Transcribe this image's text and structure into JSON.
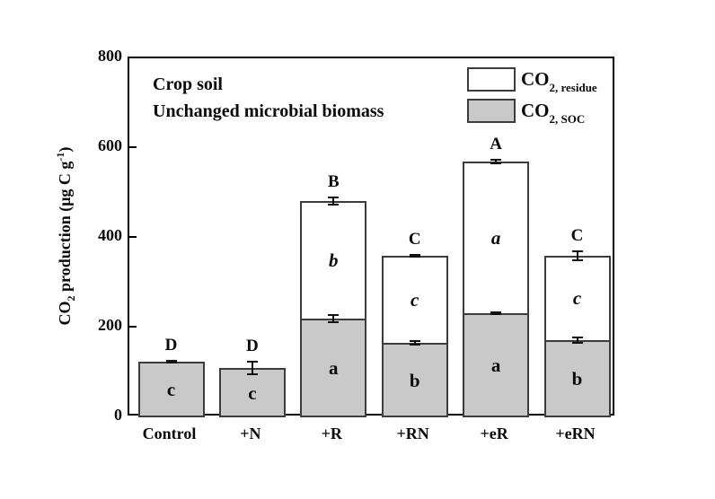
{
  "title": {
    "line1": "Crop soil",
    "line2": "Unchanged microbial biomass"
  },
  "y_axis": {
    "label": {
      "pre": "CO",
      "sub": "2",
      "mid": " production (μg C g",
      "sup": "-1",
      "post": ")"
    },
    "ticks": [
      "0",
      "200",
      "400",
      "600",
      "800"
    ]
  },
  "x_axis": {
    "categories": [
      "Control",
      "+N",
      "+R",
      "+RN",
      "+eR",
      "+eRN"
    ]
  },
  "legend": {
    "items": [
      {
        "id": "residue",
        "main": "CO",
        "sub": "2, residue",
        "fill": "#ffffff"
      },
      {
        "id": "soc",
        "main": "CO",
        "sub": "2, SOC",
        "fill": "#c9c9c9"
      }
    ]
  },
  "chart_data": {
    "type": "bar",
    "variant": "stacked",
    "title": "Crop soil",
    "subtitle": "Unchanged microbial biomass",
    "xlabel": "",
    "ylabel": "CO2 production (μg C g-1)",
    "ylim": [
      0,
      800
    ],
    "yticks": [
      0,
      200,
      400,
      600,
      800
    ],
    "grid": false,
    "legend_position": "top-right-inside",
    "categories": [
      "Control",
      "+N",
      "+R",
      "+RN",
      "+eR",
      "+eRN"
    ],
    "series": [
      {
        "name": "CO2, SOC",
        "stack_order": "bottom",
        "color": "#c9c9c9",
        "border_color": "#3c3c3c",
        "values": [
          124,
          110,
          220,
          166,
          232,
          172
        ],
        "error": [
          0,
          0,
          10,
          6,
          4,
          8
        ],
        "segment_letters": [
          "c",
          "c",
          "a",
          "b",
          "a",
          "b"
        ],
        "letter_style": "bold"
      },
      {
        "name": "CO2, residue",
        "stack_order": "top",
        "color": "#ffffff",
        "border_color": "#3c3c3c",
        "values": [
          0,
          0,
          262,
          194,
          338,
          188
        ],
        "error": [
          0,
          0,
          0,
          0,
          0,
          0
        ],
        "segment_letters": [
          "",
          "",
          "b",
          "c",
          "a",
          "c"
        ],
        "letter_style": "bold-italic"
      }
    ],
    "totals": [
      124,
      110,
      482,
      360,
      570,
      360
    ],
    "total_error": [
      4,
      16,
      10,
      4,
      6,
      12
    ],
    "sig_letters": [
      "D",
      "D",
      "B",
      "C",
      "A",
      "C"
    ]
  }
}
